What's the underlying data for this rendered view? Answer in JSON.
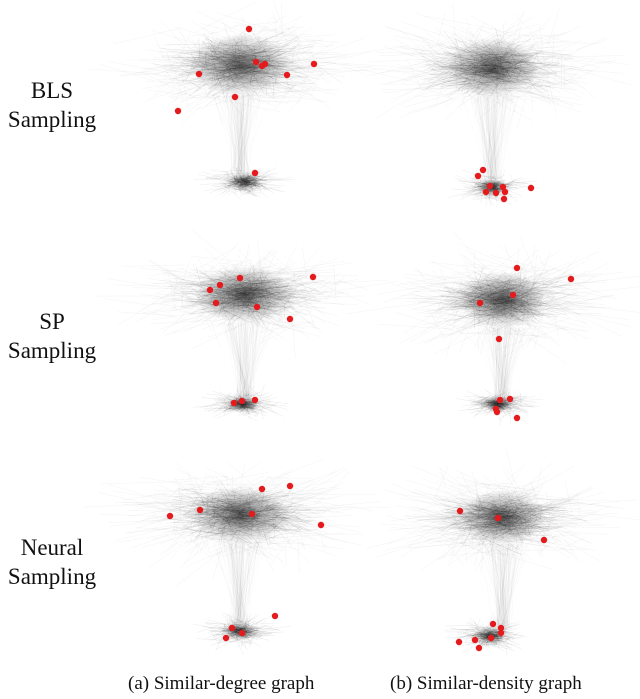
{
  "rows": [
    {
      "line1": "BLS",
      "line2": "Sampling"
    },
    {
      "line1": "SP",
      "line2": "Sampling"
    },
    {
      "line1": "Neural",
      "line2": "Sampling"
    }
  ],
  "captions": {
    "left": "(a) Similar-degree graph",
    "right": "(b) Similar-density graph"
  },
  "colors": {
    "edges": "#2a2a2a",
    "sampled_nodes": "#e41a1c"
  }
}
